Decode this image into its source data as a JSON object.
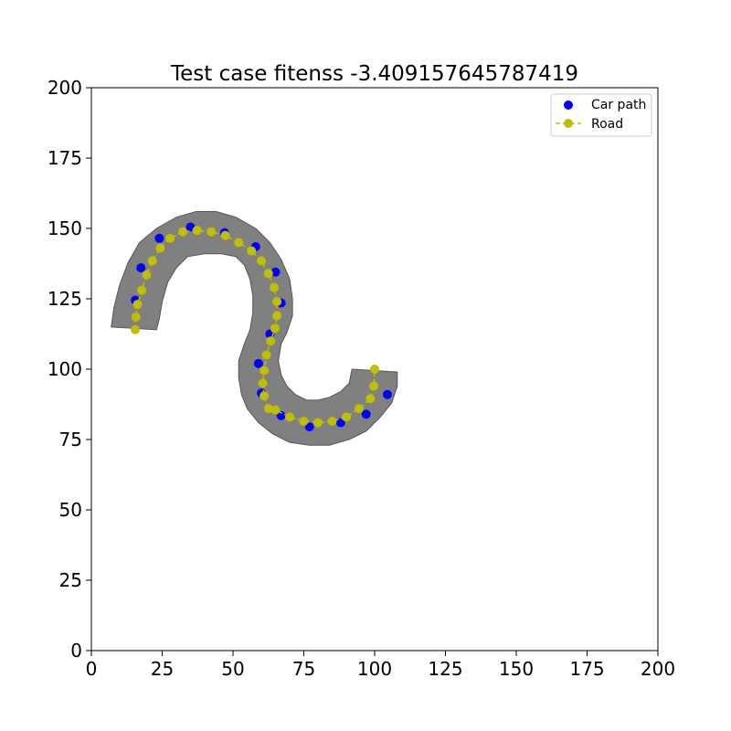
{
  "chart_data": {
    "type": "scatter",
    "title": "Test case fitenss -3.409157645787419",
    "xlim": [
      0,
      200
    ],
    "ylim": [
      0,
      200
    ],
    "xticks": [
      "0",
      "25",
      "50",
      "75",
      "100",
      "125",
      "150",
      "175",
      "200"
    ],
    "yticks": [
      "0",
      "25",
      "50",
      "75",
      "100",
      "125",
      "150",
      "175",
      "200"
    ],
    "grid": false,
    "legend_position": "top-right",
    "legend": [
      {
        "label": "Car path",
        "color": "#0000ff",
        "marker": "dot"
      },
      {
        "label": "Road",
        "color": "#bfbf00",
        "marker": "dashed-line-dot"
      }
    ],
    "road_area": {
      "color": "#808080",
      "polygon": [
        [
          7,
          115
        ],
        [
          8,
          122
        ],
        [
          10,
          130
        ],
        [
          13,
          138
        ],
        [
          17,
          145
        ],
        [
          23,
          150
        ],
        [
          30,
          154
        ],
        [
          37,
          156
        ],
        [
          44,
          156
        ],
        [
          51,
          154
        ],
        [
          58,
          150
        ],
        [
          63,
          145
        ],
        [
          67,
          139
        ],
        [
          70,
          132
        ],
        [
          71,
          125
        ],
        [
          71,
          119
        ],
        [
          69,
          113
        ],
        [
          67,
          109
        ],
        [
          66,
          103
        ],
        [
          67,
          98
        ],
        [
          69,
          94
        ],
        [
          72,
          91
        ],
        [
          76,
          89
        ],
        [
          80,
          89
        ],
        [
          84,
          90
        ],
        [
          88,
          92
        ],
        [
          91,
          95
        ],
        [
          92,
          100
        ],
        [
          108,
          99
        ],
        [
          108,
          94
        ],
        [
          106,
          88
        ],
        [
          102,
          83
        ],
        [
          97,
          78
        ],
        [
          91,
          75
        ],
        [
          84,
          73
        ],
        [
          77,
          73
        ],
        [
          70,
          74
        ],
        [
          64,
          77
        ],
        [
          59,
          81
        ],
        [
          55,
          86
        ],
        [
          53,
          91
        ],
        [
          52,
          97
        ],
        [
          52,
          103
        ],
        [
          54,
          109
        ],
        [
          56,
          114
        ],
        [
          57,
          120
        ],
        [
          57,
          126
        ],
        [
          56,
          132
        ],
        [
          54,
          137
        ],
        [
          51,
          140
        ],
        [
          46,
          141
        ],
        [
          40,
          141
        ],
        [
          34,
          140
        ],
        [
          30,
          136
        ],
        [
          27,
          131
        ],
        [
          25,
          124
        ],
        [
          24,
          118
        ],
        [
          23,
          114
        ]
      ]
    },
    "series": [
      {
        "name": "Car path",
        "color": "#0000ff",
        "x": [
          15.5,
          17.5,
          24,
          35,
          47,
          58,
          65,
          67,
          63,
          59,
          60,
          67,
          77,
          88,
          97,
          104.5
        ],
        "y": [
          124.5,
          136,
          146.5,
          150.5,
          148.5,
          143.5,
          134.5,
          123.5,
          112.5,
          102,
          91.5,
          83.5,
          79.5,
          81,
          84,
          91
        ]
      },
      {
        "name": "Road",
        "color": "#bfbf00",
        "x": [
          15.5,
          15.7,
          16.3,
          17.8,
          19.5,
          21.5,
          24.3,
          27.8,
          32.3,
          37.3,
          42.3,
          47.3,
          52,
          56.5,
          60,
          62.5,
          64.5,
          65.5,
          65.5,
          64.8,
          63.3,
          61.8,
          61,
          60.5,
          61,
          62.5,
          65,
          70,
          75,
          80,
          85,
          90,
          94.5,
          98.5,
          99.7,
          100
        ],
        "y": [
          114,
          118.5,
          123,
          128,
          133.5,
          138.5,
          143,
          146.5,
          148.8,
          149.3,
          148.8,
          147.5,
          145,
          142,
          138.5,
          134,
          129,
          124,
          119,
          114.5,
          110,
          105,
          99.5,
          95,
          90.5,
          86,
          85.5,
          83,
          81.5,
          81,
          81.5,
          83,
          86,
          89.5,
          94,
          100
        ]
      }
    ]
  }
}
